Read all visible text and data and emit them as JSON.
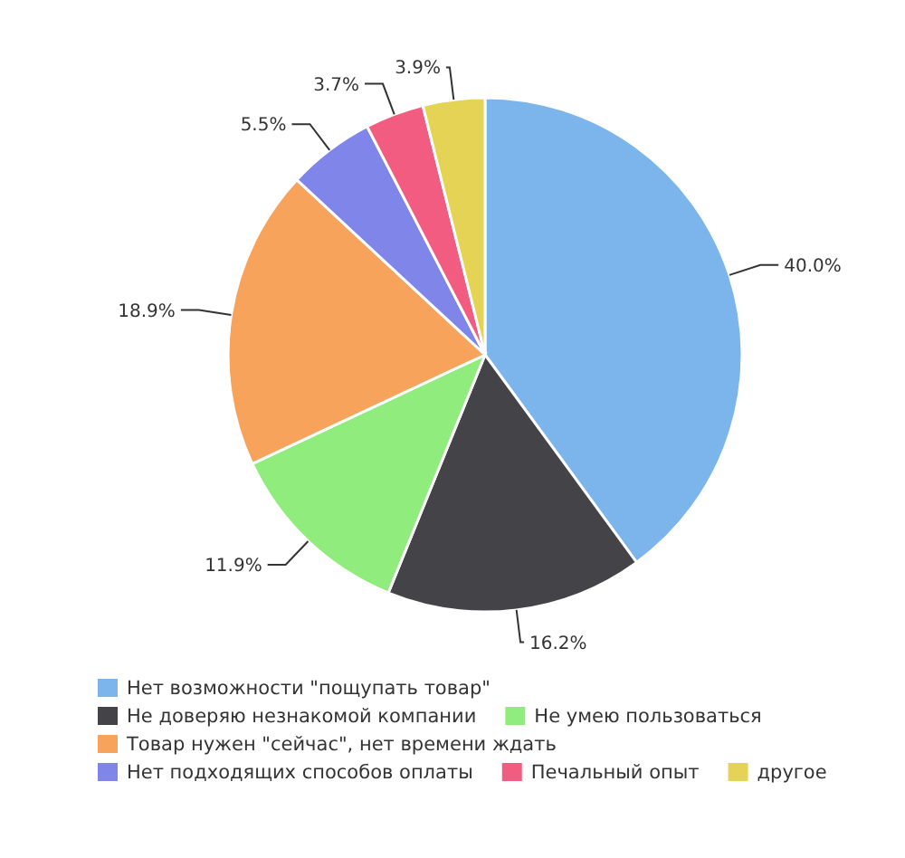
{
  "chart_data": {
    "type": "pie",
    "categories": [
      "Нет возможности \"пощупать товар\"",
      "Не доверяю незнакомой компании",
      "Не умею пользоваться",
      "Товар нужен \"сейчас\", нет времени ждать",
      "Нет подходящих способов оплаты",
      "Печальный опыт",
      "другое"
    ],
    "values": [
      40.0,
      16.2,
      11.9,
      18.9,
      5.5,
      3.7,
      3.9
    ],
    "colors": [
      "#7cb5ec",
      "#434348",
      "#90ed7d",
      "#f7a35c",
      "#8085e9",
      "#f15c80",
      "#e4d354"
    ],
    "value_labels": [
      "40.0%",
      "16.2%",
      "11.9%",
      "18.9%",
      "5.5%",
      "3.7%",
      "3.9%"
    ],
    "legend": "bottom"
  }
}
